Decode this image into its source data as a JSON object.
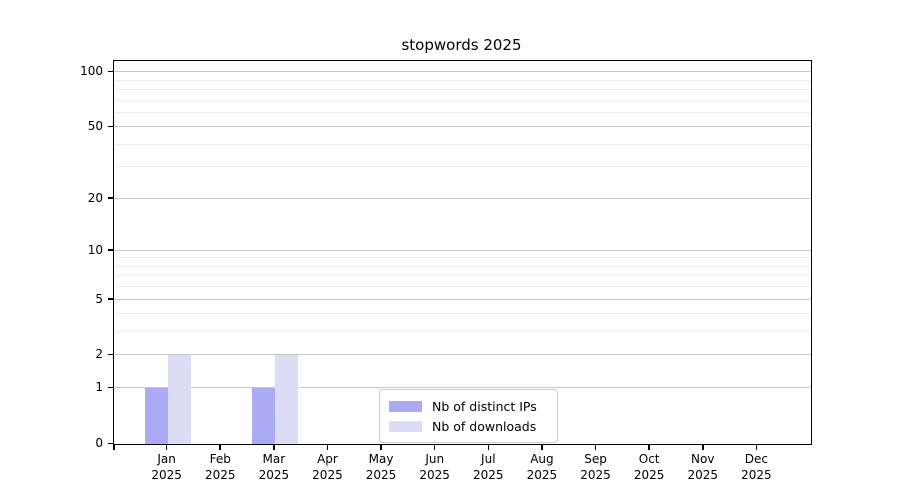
{
  "chart_data": {
    "type": "bar",
    "title": "stopwords 2025",
    "categories": [
      "Jan",
      "Feb",
      "Mar",
      "Apr",
      "May",
      "Jun",
      "Jul",
      "Aug",
      "Sep",
      "Oct",
      "Nov",
      "Dec"
    ],
    "year_label": "2025",
    "series": [
      {
        "name": "Nb of distinct IPs",
        "color": "#aaaaf5",
        "values": [
          1,
          0,
          1,
          0,
          0,
          0,
          0,
          0,
          0,
          0,
          0,
          0
        ]
      },
      {
        "name": "Nb of downloads",
        "color": "#dcdcf7",
        "values": [
          2,
          0,
          2,
          0,
          0,
          0,
          0,
          0,
          0,
          0,
          0,
          0
        ]
      }
    ],
    "y_ticks": [
      0,
      1,
      2,
      5,
      10,
      20,
      50,
      100
    ],
    "y_minor_ticks": [
      3,
      4,
      6,
      7,
      8,
      9,
      30,
      40,
      60,
      70,
      80,
      90
    ],
    "yscale": "log1p",
    "ylim": [
      0,
      115
    ],
    "xlabel": "",
    "ylabel": "",
    "grid": true,
    "legend_position": "lower center"
  },
  "colors": {
    "bar_distinct_ips": "#aaaaf5",
    "bar_downloads": "#dcdcf7",
    "grid_major": "#c8c8c8",
    "grid_minor": "#ededed",
    "axis": "#000000",
    "legend_border": "#cccccc",
    "background": "#ffffff"
  }
}
